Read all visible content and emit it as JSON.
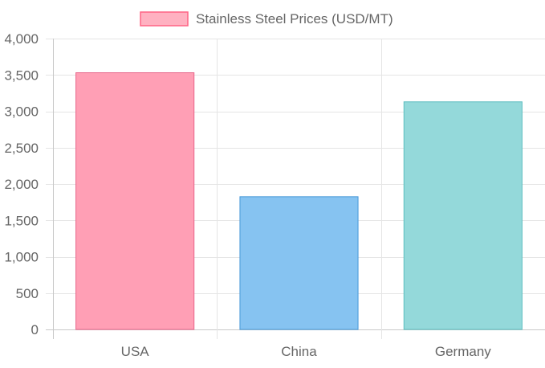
{
  "chart_data": {
    "type": "bar",
    "title": "",
    "xlabel": "",
    "ylabel": "",
    "categories": [
      "USA",
      "China",
      "Germany"
    ],
    "series": [
      {
        "name": "Stainless Steel Prices (USD/MT)",
        "values": [
          3530,
          1825,
          3130
        ]
      }
    ],
    "ylim": [
      0,
      4000
    ],
    "y_ticks": [
      0,
      500,
      1000,
      1500,
      2000,
      2500,
      3000,
      3500,
      4000
    ],
    "y_tick_labels": [
      "0",
      "500",
      "1,000",
      "1,500",
      "2,000",
      "2,500",
      "3,000",
      "3,500",
      "4,000"
    ],
    "grid": true,
    "legend_position": "top",
    "bar_colors": [
      {
        "fill": "#ff9fb5",
        "stroke": "#e8668a"
      },
      {
        "fill": "#86c3f1",
        "stroke": "#4597d8"
      },
      {
        "fill": "#94d9da",
        "stroke": "#5cbdbf"
      }
    ],
    "legend_color": {
      "fill": "#ffb1c1",
      "stroke": "#ff6384"
    }
  }
}
